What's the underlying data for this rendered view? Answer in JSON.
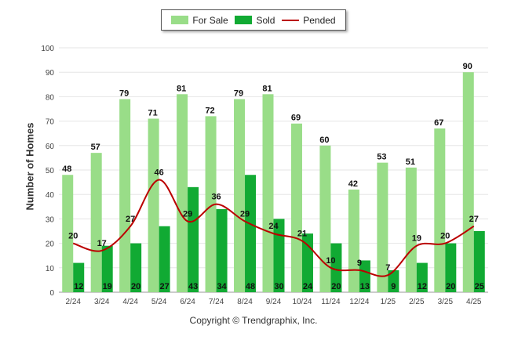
{
  "legend": {
    "for_sale": "For Sale",
    "sold": "Sold",
    "pended": "Pended"
  },
  "copyright": "Copyright © Trendgraphix, Inc.",
  "colors": {
    "for_sale": "#99dd88",
    "sold": "#11aa33",
    "pended": "#bb0000",
    "grid": "#e6e6e6"
  },
  "chart_data": {
    "type": "bar",
    "categories": [
      "2/24",
      "3/24",
      "4/24",
      "5/24",
      "6/24",
      "7/24",
      "8/24",
      "9/24",
      "10/24",
      "11/24",
      "12/24",
      "1/25",
      "2/25",
      "3/25",
      "4/25"
    ],
    "series": [
      {
        "name": "For Sale",
        "type": "bar",
        "values": [
          48,
          57,
          79,
          71,
          81,
          72,
          79,
          81,
          69,
          60,
          42,
          53,
          51,
          67,
          90
        ]
      },
      {
        "name": "Sold",
        "type": "bar",
        "values": [
          12,
          19,
          20,
          27,
          43,
          34,
          48,
          30,
          24,
          20,
          13,
          9,
          12,
          20,
          25
        ]
      },
      {
        "name": "Pended",
        "type": "line",
        "values": [
          20,
          17,
          27,
          46,
          29,
          36,
          29,
          24,
          21,
          10,
          9,
          7,
          19,
          20,
          27
        ]
      }
    ],
    "ylabel": "Number of Homes",
    "ylim": [
      0,
      100
    ],
    "yticks": [
      0,
      10,
      20,
      30,
      40,
      50,
      60,
      70,
      80,
      90,
      100
    ],
    "grid": true,
    "legend": "top-center"
  }
}
